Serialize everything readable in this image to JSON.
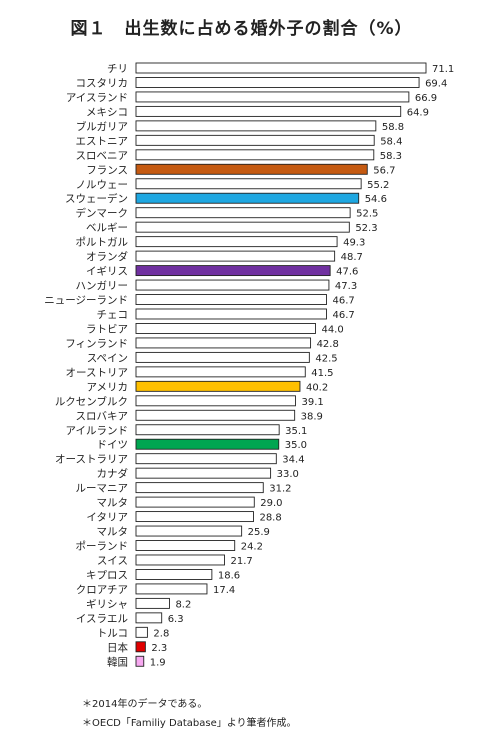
{
  "title": "図１　出生数に占める婚外子の割合（%）",
  "notes": [
    "＊2014年のデータである。",
    "＊OECD「Familiy Database」より筆者作成。"
  ],
  "colors": {
    "default": "#ffffff",
    "france": "#c55a11",
    "sweden": "#1ea7e1",
    "uk": "#7030a0",
    "usa": "#ffc000",
    "germany": "#00a651",
    "japan": "#e00000",
    "korea": "#f7a8f0"
  },
  "chart_data": {
    "type": "bar",
    "orientation": "horizontal",
    "categories": [
      "チリ",
      "コスタリカ",
      "アイスランド",
      "メキシコ",
      "ブルガリア",
      "エストニア",
      "スロベニア",
      "フランス",
      "ノルウェー",
      "スウェーデン",
      "デンマーク",
      "ベルギー",
      "ポルトガル",
      "オランダ",
      "イギリス",
      "ハンガリー",
      "ニュージーランド",
      "チェコ",
      "ラトビア",
      "フィンランド",
      "スペイン",
      "オーストリア",
      "アメリカ",
      "ルクセンブルク",
      "スロバキア",
      "アイルランド",
      "ドイツ",
      "オーストラリア",
      "カナダ",
      "ルーマニア",
      "マルタ",
      "イタリア",
      "マルタ",
      "ポーランド",
      "スイス",
      "キプロス",
      "クロアチア",
      "ギリシャ",
      "イスラエル",
      "トルコ",
      "日本",
      "韓国"
    ],
    "values": [
      71.1,
      69.4,
      66.9,
      64.9,
      58.8,
      58.4,
      58.3,
      56.7,
      55.2,
      54.6,
      52.5,
      52.3,
      49.3,
      48.7,
      47.6,
      47.3,
      46.7,
      46.7,
      44.0,
      42.8,
      42.5,
      41.5,
      40.2,
      39.1,
      38.9,
      35.1,
      35.0,
      34.4,
      33.0,
      31.2,
      29.0,
      28.8,
      25.9,
      24.2,
      21.7,
      18.6,
      17.4,
      8.2,
      6.3,
      2.8,
      2.3,
      1.9
    ],
    "value_labels": [
      "71.1",
      "69.4",
      "66.9",
      "64.9",
      "58.8",
      "58.4",
      "58.3",
      "56.7",
      "55.2",
      "54.6",
      "52.5",
      "52.3",
      "49.3",
      "48.7",
      "47.6",
      "47.3",
      "46.7",
      "46.7",
      "44.0",
      "42.8",
      "42.5",
      "41.5",
      "40.2",
      "39.1",
      "38.9",
      "35.1",
      "35.0",
      "34.4",
      "33.0",
      "31.2",
      "29.0",
      "28.8",
      "25.9",
      "24.2",
      "21.7",
      "18.6",
      "17.4",
      "8.2",
      "6.3",
      "2.8",
      "2.3",
      "1.9"
    ],
    "highlight": {
      "フランス": "france",
      "スウェーデン": "sweden",
      "イギリス": "uk",
      "アメリカ": "usa",
      "ドイツ": "germany",
      "日本": "japan",
      "韓国": "korea"
    },
    "xlim": [
      0,
      75
    ],
    "grid": false,
    "axes_visible": false
  }
}
